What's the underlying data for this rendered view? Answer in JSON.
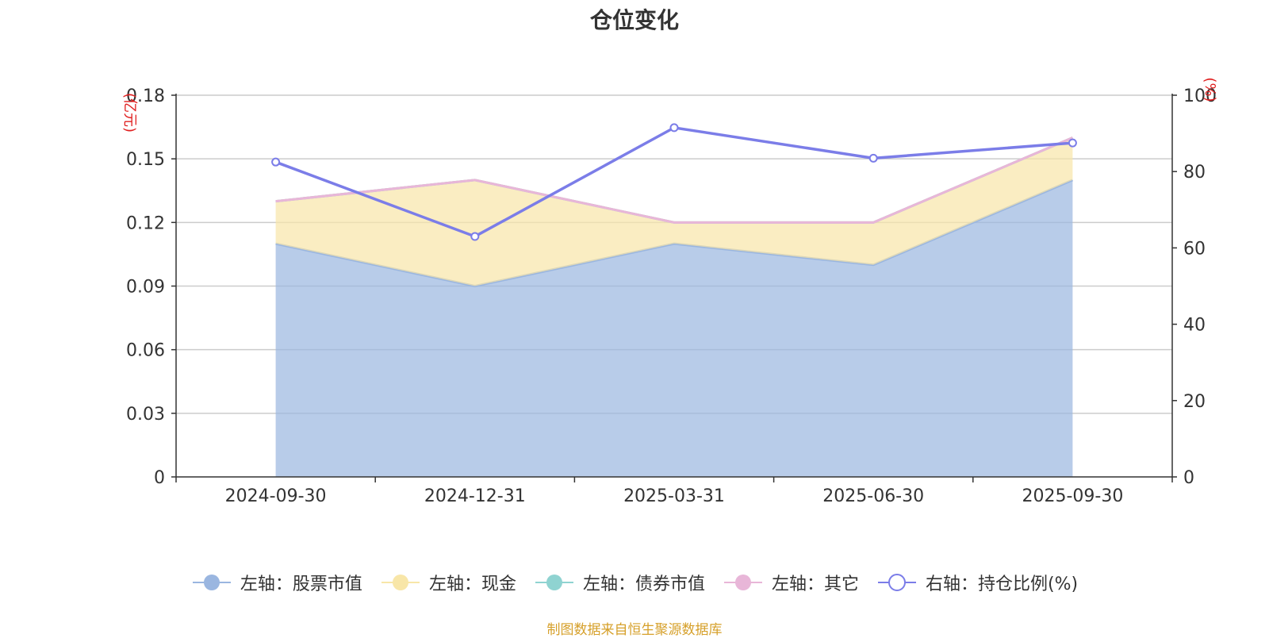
{
  "chart_data": {
    "type": "area",
    "title": "仓位变化",
    "categories": [
      "2024-09-30",
      "2024-12-31",
      "2025-03-31",
      "2025-06-30",
      "2025-09-30"
    ],
    "y_left": {
      "unit": "(亿元)",
      "ylim": [
        0,
        0.18
      ],
      "ticks": [
        "0",
        "0.03",
        "0.06",
        "0.09",
        "0.12",
        "0.15",
        "0.18"
      ]
    },
    "y_right": {
      "unit": "(%)",
      "ylim": [
        0,
        100
      ],
      "ticks": [
        "0",
        "20",
        "40",
        "60",
        "80",
        "100"
      ]
    },
    "series": [
      {
        "name": "左轴：股票市值",
        "axis": "left",
        "type": "area",
        "color": "#9ab6e0",
        "values": [
          0.11,
          0.09,
          0.11,
          0.1,
          0.14
        ]
      },
      {
        "name": "左轴：现金",
        "axis": "left",
        "type": "area",
        "color": "#f8e6a8",
        "values": [
          0.02,
          0.05,
          0.01,
          0.02,
          0.02
        ]
      },
      {
        "name": "左轴：债券市值",
        "axis": "left",
        "type": "area",
        "color": "#8fd3d1",
        "values": [
          0,
          0,
          0,
          0,
          0
        ]
      },
      {
        "name": "左轴：其它",
        "axis": "left",
        "type": "area",
        "color": "#e8b6d8",
        "values": [
          0,
          0,
          0,
          0,
          0
        ]
      },
      {
        "name": "右轴：持仓比例(%)",
        "axis": "right",
        "type": "line",
        "color": "#7b7de8",
        "values": [
          82.5,
          63,
          91.5,
          83.5,
          87.5
        ]
      }
    ],
    "grid": true,
    "legend_position": "bottom"
  },
  "footer": {
    "source": "制图数据来自恒生聚源数据库"
  }
}
